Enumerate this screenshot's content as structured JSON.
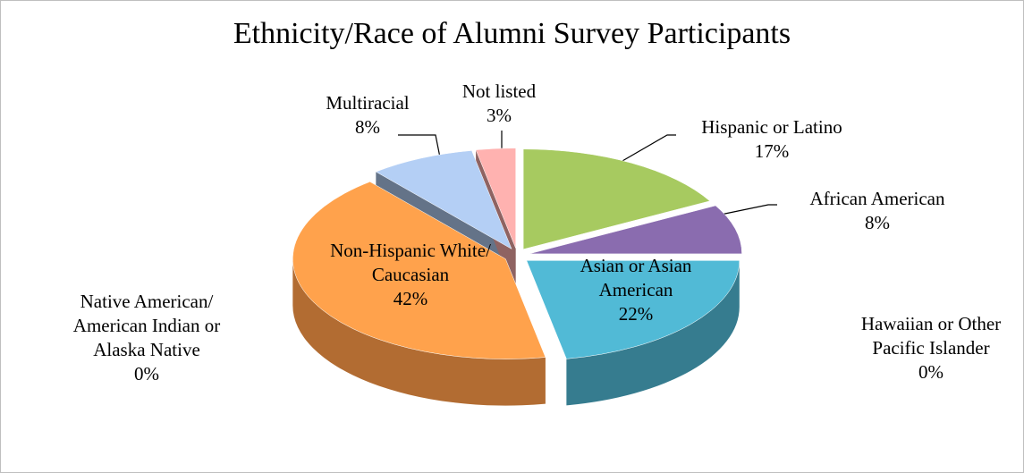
{
  "chart_data": {
    "type": "pie",
    "title": "Ethnicity/Race of Alumni Survey Participants",
    "categories": [
      "Hispanic or Latino",
      "African American",
      "Hawaiian or Other Pacific Islander",
      "Asian or Asian American",
      "Native American/ American Indian or Alaska Native",
      "Non-Hispanic White/ Caucasian",
      "Multiracial",
      "Not listed"
    ],
    "values": [
      17,
      8,
      0,
      22,
      0,
      42,
      8,
      3
    ],
    "value_labels": [
      "17%",
      "8%",
      "0%",
      "22%",
      "0%",
      "42%",
      "8%",
      "3%"
    ],
    "colors": [
      "#9bbb59",
      "#8064a2",
      "#4bacc6",
      "#4bacc6",
      "#f79646",
      "#f79646",
      "#a7c0e3",
      "#eea5a3"
    ]
  }
}
